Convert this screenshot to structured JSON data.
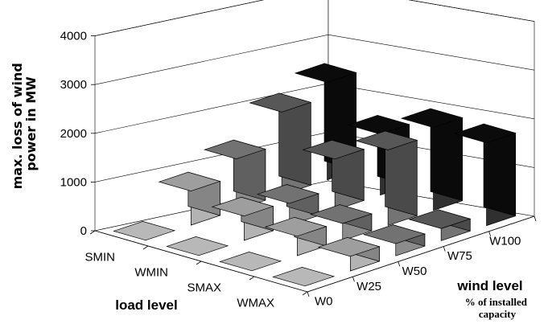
{
  "chart_data": {
    "type": "bar",
    "style": "3d",
    "ylabel": "max. loss of wind power in MW",
    "x_axis_title": "wind level",
    "x_axis_subtitle": "% of installed capacity",
    "depth_axis_title": "load level",
    "x_categories": [
      "W0",
      "W25",
      "W50",
      "W75",
      "W100"
    ],
    "depth_categories": [
      "SMIN",
      "WMIN",
      "SMAX",
      "WMAX"
    ],
    "yticks": [
      "0",
      "1000",
      "2000",
      "3000",
      "4000"
    ],
    "ylim": [
      0,
      4000
    ],
    "grid": true,
    "series": [
      {
        "name": "SMIN",
        "values": [
          0,
          700,
          1050,
          1700,
          2000
        ]
      },
      {
        "name": "WMIN",
        "values": [
          0,
          500,
          450,
          1050,
          1250
        ]
      },
      {
        "name": "SMAX",
        "values": [
          0,
          400,
          350,
          1550,
          1700
        ]
      },
      {
        "name": "WMAX",
        "values": [
          0,
          300,
          250,
          250,
          1700
        ]
      }
    ],
    "colors": {
      "W0": "#b8b8b8",
      "W25": "#a6a6a6",
      "W50": "#787878",
      "W75": "#5c5c5c",
      "W100": "#0c0c0c"
    }
  }
}
